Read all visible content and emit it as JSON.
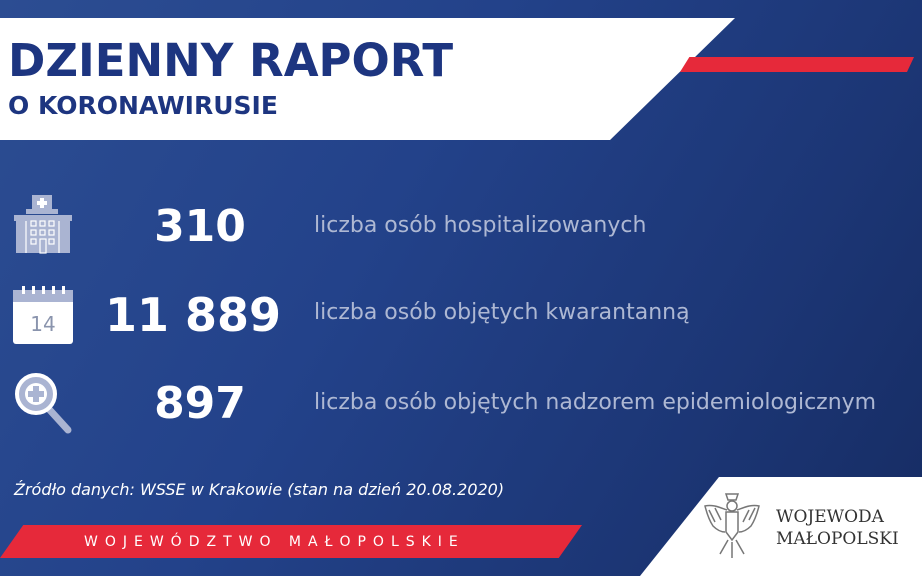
{
  "header": {
    "title": "DZIENNY RAPORT",
    "subtitle": "O KORONAWIRUSIE"
  },
  "stats": [
    {
      "icon": "hospital-icon",
      "value": "310",
      "label": "liczba osób hospitalizowanych"
    },
    {
      "icon": "calendar-icon",
      "calendar_day": "14",
      "value": "11 889",
      "label": "liczba osób objętych kwarantanną"
    },
    {
      "icon": "magnifier-plus-icon",
      "value": "897",
      "label": "liczba osób objętych nadzorem epidemiologicznym"
    }
  ],
  "source": "Źródło danych: WSSE w Krakowie (stan na dzień 20.08.2020)",
  "banner": "WOJEWÓDZTWO MAŁOPOLSKIE",
  "logo": {
    "line1": "WOJEWODA",
    "line2": "MAŁOPOLSKI"
  },
  "colors": {
    "background": "#23428a",
    "accent_red": "#e6293a",
    "title_blue": "#1d3580"
  }
}
